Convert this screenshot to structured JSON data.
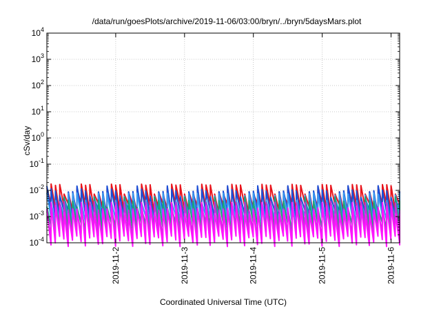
{
  "chart_data": {
    "type": "line",
    "title": "/data/run/goesPlots/archive/2019-11-06/03:00/bryn/../bryn/5daysMars.plot",
    "xlabel": "Coordinated Universal Time (UTC)",
    "ylabel": "cSv/day",
    "yscale": "log",
    "ylim": [
      0.0001,
      10000
    ],
    "xlim": [
      "2019-11-01T00:00",
      "2019-11-06T03:00"
    ],
    "grid": true,
    "y_ticks": [
      {
        "base": "10",
        "exp": "-4"
      },
      {
        "base": "10",
        "exp": "-3"
      },
      {
        "base": "10",
        "exp": "-2"
      },
      {
        "base": "10",
        "exp": "-1"
      },
      {
        "base": "10",
        "exp": "0"
      },
      {
        "base": "10",
        "exp": "1"
      },
      {
        "base": "10",
        "exp": "2"
      },
      {
        "base": "10",
        "exp": "3"
      },
      {
        "base": "10",
        "exp": "4"
      }
    ],
    "x_ticks": [
      "2019-11-2",
      "2019-11-3",
      "2019-11-4",
      "2019-11-5",
      "2019-11-6"
    ],
    "sawtooth_period_hours": 1.5,
    "series": [
      {
        "color": "#e8141c",
        "peak": 0.016,
        "trough": 0.0032
      },
      {
        "color": "#1a4fd6",
        "peak": 0.012,
        "trough": 0.0018
      },
      {
        "color": "#3a9af0",
        "peak": 0.0075,
        "trough": 0.0011
      },
      {
        "color": "#1aa67a",
        "peak": 0.0045,
        "trough": 0.0006
      },
      {
        "color": "#c430d8",
        "peak": 0.0035,
        "trough": 0.0003
      },
      {
        "color": "#ff14ff",
        "peak": 0.0028,
        "trough": 0.00018
      }
    ]
  }
}
